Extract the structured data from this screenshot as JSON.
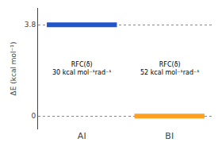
{
  "chart_data": {
    "type": "energy_level",
    "categories": [
      "AI",
      "BI"
    ],
    "values": [
      3.8,
      0
    ],
    "colors": [
      "#2255CC",
      "#FFA020"
    ],
    "ylabel": "ΔE (kcal mol⁻¹)",
    "ylim": [
      -0.55,
      4.5
    ],
    "yticks": [
      0,
      3.8
    ],
    "grid": true,
    "annotations": [
      "RFC(δ)\n30 kcal mol⁻¹rad⁻¹",
      "RFC(δ)\n52 kcal mol⁻¹rad⁻¹"
    ]
  }
}
